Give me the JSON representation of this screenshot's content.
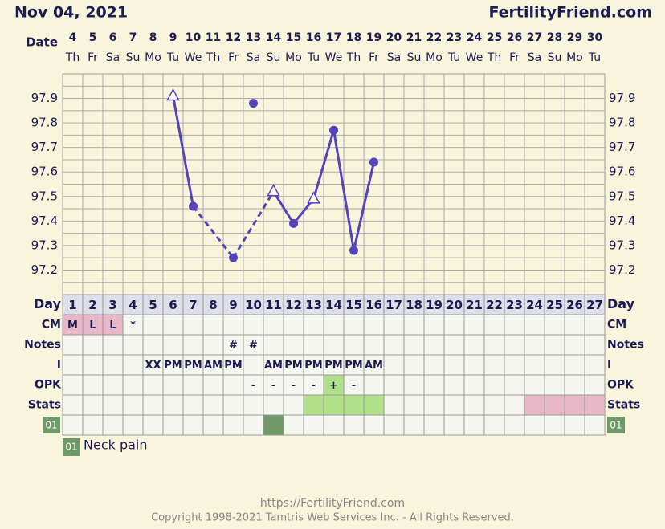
{
  "header": {
    "date": "Nov 04, 2021",
    "site": "FertilityFriend.com",
    "date_label": "Date"
  },
  "chart_data": {
    "type": "line",
    "categories": [
      "4",
      "5",
      "6",
      "7",
      "8",
      "9",
      "10",
      "11",
      "12",
      "13",
      "14",
      "15",
      "16",
      "17",
      "18",
      "19",
      "20",
      "21",
      "22",
      "23",
      "24",
      "25",
      "26",
      "27",
      "28",
      "29",
      "30"
    ],
    "weekdays": [
      "Th",
      "Fr",
      "Sa",
      "Su",
      "Mo",
      "Tu",
      "We",
      "Th",
      "Fr",
      "Sa",
      "Su",
      "Mo",
      "Tu",
      "We",
      "Th",
      "Fr",
      "Sa",
      "Su",
      "Mo",
      "Tu",
      "We",
      "Th",
      "Fr",
      "Sa",
      "Su",
      "Mo",
      "Tu"
    ],
    "series": [
      {
        "name": "Temperature",
        "color": "#5544bb",
        "values": [
          null,
          null,
          null,
          null,
          null,
          97.91,
          97.46,
          null,
          97.25,
          97.88,
          97.52,
          97.39,
          97.49,
          97.77,
          97.28,
          97.64,
          null,
          null,
          null,
          null,
          null,
          null,
          null,
          null,
          null,
          null,
          null
        ],
        "markers": [
          null,
          null,
          null,
          null,
          null,
          "triangle",
          "dot",
          null,
          "dot",
          "dot-unlinked",
          "triangle",
          "dot",
          "triangle",
          "dot",
          "dot",
          "dot",
          null,
          null,
          null,
          null,
          null,
          null,
          null,
          null,
          null,
          null,
          null
        ]
      }
    ],
    "ylim": [
      97.1,
      98.0
    ],
    "yticks": [
      97.2,
      97.3,
      97.4,
      97.5,
      97.6,
      97.7,
      97.8,
      97.9
    ],
    "grid": true
  },
  "table": {
    "rows": [
      {
        "label": "Day",
        "cells": [
          "1",
          "2",
          "3",
          "4",
          "5",
          "6",
          "7",
          "8",
          "9",
          "10",
          "11",
          "12",
          "13",
          "14",
          "15",
          "16",
          "17",
          "18",
          "19",
          "20",
          "21",
          "22",
          "23",
          "24",
          "25",
          "26",
          "27"
        ],
        "colors": [
          null,
          null,
          null,
          null,
          null,
          null,
          null,
          null,
          null,
          null,
          null,
          null,
          null,
          null,
          null,
          null,
          null,
          null,
          null,
          null,
          null,
          null,
          null,
          null,
          null,
          null,
          null
        ]
      },
      {
        "label": "CM",
        "cells": [
          "M",
          "L",
          "L",
          "*",
          null,
          null,
          null,
          null,
          null,
          null,
          null,
          null,
          null,
          null,
          null,
          null,
          null,
          null,
          null,
          null,
          null,
          null,
          null,
          null,
          null,
          null,
          null
        ],
        "colors": [
          "#e8b8c8",
          "#e8b8c8",
          "#e8b8c8",
          null,
          null,
          null,
          null,
          null,
          null,
          null,
          null,
          null,
          null,
          null,
          null,
          null,
          null,
          null,
          null,
          null,
          null,
          null,
          null,
          null,
          null,
          null,
          null
        ]
      },
      {
        "label": "Notes",
        "cells": [
          null,
          null,
          null,
          null,
          null,
          null,
          null,
          null,
          "#",
          "#",
          null,
          null,
          null,
          null,
          null,
          null,
          null,
          null,
          null,
          null,
          null,
          null,
          null,
          null,
          null,
          null,
          null
        ],
        "colors": [
          null,
          null,
          null,
          null,
          null,
          null,
          null,
          null,
          null,
          null,
          null,
          null,
          null,
          null,
          null,
          null,
          null,
          null,
          null,
          null,
          null,
          null,
          null,
          null,
          null,
          null,
          null
        ]
      },
      {
        "label": "I",
        "cells": [
          null,
          null,
          null,
          null,
          "XX",
          "PM",
          "PM",
          "AM",
          "PM",
          null,
          "AM",
          "PM",
          "PM",
          "PM",
          "PM",
          "AM",
          null,
          null,
          null,
          null,
          null,
          null,
          null,
          null,
          null,
          null,
          null
        ],
        "colors": [
          null,
          null,
          null,
          null,
          null,
          null,
          null,
          null,
          null,
          null,
          null,
          null,
          null,
          null,
          null,
          null,
          null,
          null,
          null,
          null,
          null,
          null,
          null,
          null,
          null,
          null,
          null
        ]
      },
      {
        "label": "OPK",
        "cells": [
          null,
          null,
          null,
          null,
          null,
          null,
          null,
          null,
          null,
          "-",
          "-",
          "-",
          "-",
          "+",
          "-",
          null,
          null,
          null,
          null,
          null,
          null,
          null,
          null,
          null,
          null,
          null,
          null
        ],
        "colors": [
          null,
          null,
          null,
          null,
          null,
          null,
          null,
          null,
          null,
          null,
          null,
          null,
          null,
          "#b2e08a",
          null,
          null,
          null,
          null,
          null,
          null,
          null,
          null,
          null,
          null,
          null,
          null,
          null
        ]
      },
      {
        "label": "Stats",
        "cells": [
          null,
          null,
          null,
          null,
          null,
          null,
          null,
          null,
          null,
          null,
          null,
          null,
          null,
          null,
          null,
          null,
          null,
          null,
          null,
          null,
          null,
          null,
          null,
          null,
          null,
          null,
          null
        ],
        "colors": [
          null,
          null,
          null,
          null,
          null,
          null,
          null,
          null,
          null,
          null,
          null,
          null,
          "#b2e08a",
          "#b2e08a",
          "#b2e08a",
          "#b2e08a",
          null,
          null,
          null,
          null,
          null,
          null,
          null,
          "#e8b8c8",
          "#e8b8c8",
          "#e8b8c8",
          "#e8b8c8"
        ]
      },
      {
        "label": "01",
        "cells": [
          null,
          null,
          null,
          null,
          null,
          null,
          null,
          null,
          null,
          null,
          null,
          null,
          null,
          null,
          null,
          null,
          null,
          null,
          null,
          null,
          null,
          null,
          null,
          null,
          null,
          null,
          null
        ],
        "colors": [
          null,
          null,
          null,
          null,
          null,
          null,
          null,
          null,
          null,
          null,
          "#6f9a68",
          null,
          null,
          null,
          null,
          null,
          null,
          null,
          null,
          null,
          null,
          null,
          null,
          null,
          null,
          null,
          null
        ]
      }
    ]
  },
  "legend": {
    "code": "01",
    "text": "Neck pain"
  },
  "footer": {
    "url": "https://FertilityFriend.com",
    "copyright": "Copyright 1998-2021 Tamtris Web Services Inc. - All Rights Reserved."
  }
}
